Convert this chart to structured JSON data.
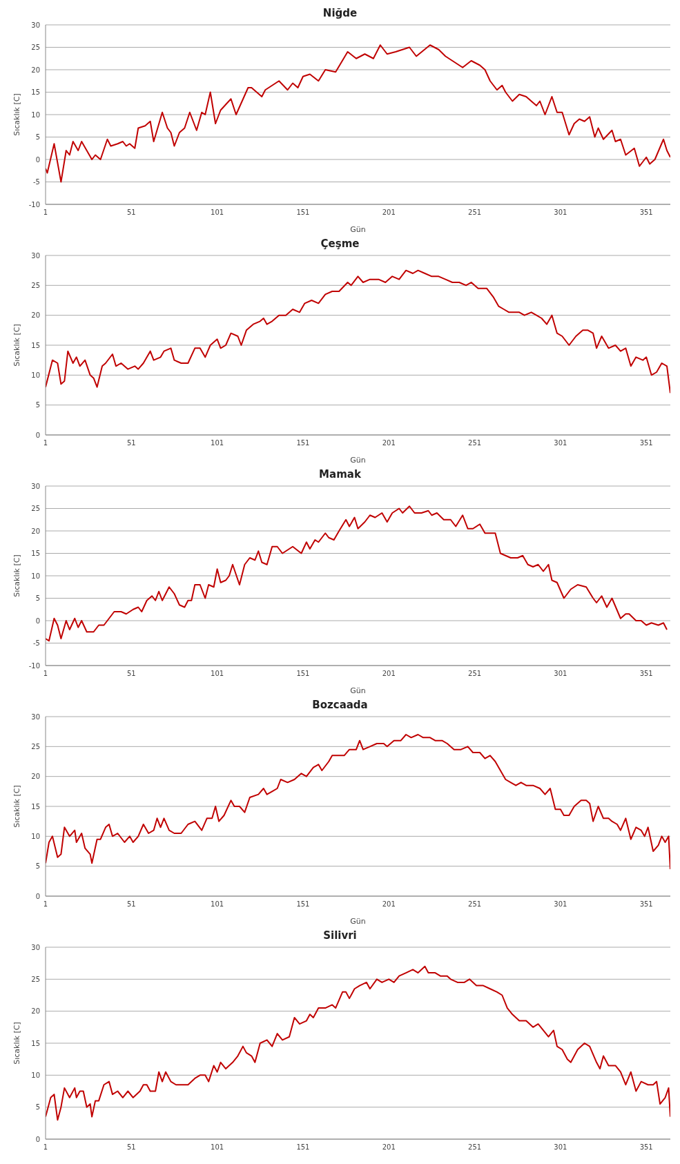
{
  "chart_data": [
    {
      "type": "line",
      "title": "Niğde",
      "xlabel": "Gün",
      "ylabel": "Sıcaklık [C]",
      "xlim": [
        1,
        365
      ],
      "xticks": [
        1,
        51,
        101,
        151,
        201,
        251,
        301,
        351
      ],
      "ylim": [
        -10,
        30
      ],
      "yticks": [
        -10,
        -5,
        0,
        5,
        10,
        15,
        20,
        25,
        30
      ],
      "grid": "y",
      "marker": "none",
      "line_style": "solid",
      "color": "#c00000",
      "x": [
        1,
        2,
        6,
        10,
        13,
        15,
        17,
        20,
        22,
        25,
        28,
        30,
        33,
        37,
        39,
        43,
        46,
        48,
        50,
        53,
        55,
        59,
        62,
        64,
        69,
        72,
        74,
        76,
        79,
        82,
        85,
        89,
        92,
        94,
        97,
        100,
        103,
        109,
        112,
        119,
        121,
        127,
        129,
        137,
        142,
        145,
        148,
        151,
        155,
        160,
        164,
        170,
        177,
        182,
        187,
        192,
        196,
        200,
        205,
        213,
        217,
        225,
        230,
        234,
        238,
        244,
        249,
        254,
        257,
        260,
        264,
        267,
        269,
        273,
        277,
        281,
        287,
        289,
        292,
        296,
        299,
        302,
        306,
        309,
        312,
        315,
        318,
        321,
        323,
        326,
        331,
        333,
        336,
        339,
        344,
        347,
        351,
        353,
        356,
        361,
        363,
        365
      ],
      "values": [
        -2,
        -3,
        3.5,
        -5,
        2,
        1,
        4,
        2,
        4,
        2,
        0,
        1,
        0,
        4.5,
        3,
        3.5,
        4,
        3,
        3.5,
        2.5,
        7,
        7.5,
        8.5,
        4,
        10.5,
        7,
        6,
        3,
        6,
        7,
        10.5,
        6.5,
        10.5,
        10,
        15,
        8,
        11,
        13.5,
        10,
        16,
        16,
        14,
        15.5,
        17.5,
        15.5,
        17,
        16,
        18.5,
        19,
        17.5,
        20,
        19.5,
        24,
        22.5,
        23.5,
        22.5,
        25.5,
        23.5,
        24,
        25,
        23,
        25.5,
        24.5,
        23,
        22,
        20.5,
        22,
        21,
        20,
        17.5,
        15.5,
        16.5,
        15,
        13,
        14.5,
        14,
        12,
        13,
        10,
        14,
        10.5,
        10.5,
        5.5,
        8,
        9,
        8.5,
        9.5,
        5,
        7,
        4.5,
        6.5,
        4,
        4.5,
        1,
        2.5,
        -1.5,
        0.5,
        -1,
        0,
        4.5,
        2,
        0.5
      ]
    },
    {
      "type": "line",
      "title": "Çeşme",
      "xlabel": "Gün",
      "ylabel": "Sıcaklık [C]",
      "xlim": [
        1,
        365
      ],
      "xticks": [
        1,
        51,
        101,
        151,
        201,
        251,
        301,
        351
      ],
      "ylim": [
        0,
        30
      ],
      "yticks": [
        0,
        5,
        10,
        15,
        20,
        25,
        30
      ],
      "grid": "y",
      "marker": "none",
      "line_style": "solid",
      "color": "#c00000",
      "x": [
        1,
        5,
        8,
        10,
        12,
        14,
        17,
        19,
        21,
        24,
        27,
        29,
        31,
        34,
        36,
        40,
        42,
        45,
        49,
        53,
        55,
        58,
        62,
        64,
        68,
        70,
        74,
        76,
        80,
        84,
        88,
        91,
        94,
        97,
        101,
        103,
        106,
        109,
        113,
        115,
        118,
        122,
        126,
        128,
        130,
        133,
        137,
        141,
        145,
        149,
        152,
        156,
        160,
        164,
        168,
        172,
        177,
        179,
        183,
        186,
        190,
        195,
        199,
        203,
        207,
        211,
        215,
        218,
        222,
        226,
        230,
        234,
        238,
        242,
        246,
        249,
        253,
        258,
        262,
        265,
        268,
        271,
        274,
        277,
        280,
        284,
        287,
        290,
        293,
        296,
        299,
        302,
        306,
        310,
        314,
        317,
        320,
        322,
        325,
        329,
        333,
        336,
        339,
        342,
        345,
        349,
        351,
        354,
        357,
        360,
        363,
        365
      ],
      "values": [
        8,
        12.5,
        12,
        8.5,
        9,
        14,
        12,
        13,
        11.5,
        12.5,
        10,
        9.5,
        8,
        11.5,
        12,
        13.5,
        11.5,
        12,
        11,
        11.5,
        11,
        12,
        14,
        12.5,
        13,
        14,
        14.5,
        12.5,
        12,
        12,
        14.5,
        14.5,
        13,
        15,
        16,
        14.5,
        15,
        17,
        16.5,
        15,
        17.5,
        18.5,
        19,
        19.5,
        18.5,
        19,
        20,
        20,
        21,
        20.5,
        22,
        22.5,
        22,
        23.5,
        24,
        24,
        25.5,
        25,
        26.5,
        25.5,
        26,
        26,
        25.5,
        26.5,
        26,
        27.5,
        27,
        27.5,
        27,
        26.5,
        26.5,
        26,
        25.5,
        25.5,
        25,
        25.5,
        24.5,
        24.5,
        23,
        21.5,
        21,
        20.5,
        20.5,
        20.5,
        20,
        20.5,
        20,
        19.5,
        18.5,
        20,
        17,
        16.5,
        15,
        16.5,
        17.5,
        17.5,
        17,
        14.5,
        16.5,
        14.5,
        15,
        14,
        14.5,
        11.5,
        13,
        12.5,
        13,
        10,
        10.5,
        12,
        11.5,
        7
      ]
    },
    {
      "type": "line",
      "title": "Mamak",
      "xlabel": "Gün",
      "ylabel": "Sıcaklık [C]",
      "xlim": [
        1,
        365
      ],
      "xticks": [
        1,
        51,
        101,
        151,
        201,
        251,
        301,
        351
      ],
      "ylim": [
        -10,
        30
      ],
      "yticks": [
        -10,
        -5,
        0,
        5,
        10,
        15,
        20,
        25,
        30
      ],
      "grid": "y",
      "marker": "none",
      "line_style": "solid",
      "color": "#c00000",
      "x": [
        1,
        3,
        6,
        8,
        10,
        13,
        15,
        18,
        20,
        22,
        25,
        29,
        32,
        35,
        38,
        41,
        45,
        48,
        52,
        55,
        57,
        60,
        63,
        65,
        67,
        69,
        73,
        76,
        79,
        82,
        84,
        86,
        88,
        91,
        94,
        96,
        99,
        101,
        103,
        106,
        108,
        110,
        114,
        117,
        120,
        123,
        125,
        127,
        130,
        133,
        136,
        139,
        143,
        145,
        150,
        153,
        155,
        158,
        160,
        164,
        166,
        169,
        172,
        176,
        178,
        181,
        183,
        187,
        190,
        193,
        197,
        200,
        203,
        207,
        209,
        213,
        216,
        220,
        224,
        226,
        229,
        233,
        237,
        240,
        244,
        247,
        250,
        254,
        257,
        260,
        263,
        266,
        269,
        272,
        276,
        279,
        282,
        285,
        288,
        291,
        294,
        296,
        299,
        303,
        307,
        311,
        316,
        320,
        322,
        325,
        328,
        331,
        336,
        339,
        341,
        345,
        348,
        351,
        354,
        358,
        361,
        363
      ],
      "values": [
        -4,
        -4.5,
        0.5,
        -1,
        -4,
        0,
        -2,
        0.5,
        -1.5,
        0,
        -2.5,
        -2.5,
        -1,
        -1,
        0.5,
        2,
        2,
        1.5,
        2.5,
        3,
        2,
        4.5,
        5.5,
        4.5,
        6.5,
        4.5,
        7.5,
        6,
        3.5,
        3,
        4.5,
        4.5,
        8,
        8,
        5,
        8,
        7.5,
        11.5,
        8.5,
        9,
        10,
        12.5,
        8,
        12.5,
        14,
        13.5,
        15.5,
        13,
        12.5,
        16.5,
        16.5,
        15,
        16,
        16.5,
        15,
        17.5,
        16,
        18,
        17.5,
        19.5,
        18.5,
        18,
        20,
        22.5,
        21,
        23,
        20.5,
        22,
        23.5,
        23,
        24,
        22,
        24,
        25,
        24,
        25.5,
        24,
        24,
        24.5,
        23.5,
        24,
        22.5,
        22.5,
        21,
        23.5,
        20.5,
        20.5,
        21.5,
        19.5,
        19.5,
        19.5,
        15,
        14.5,
        14,
        14,
        14.5,
        12.5,
        12,
        12.5,
        11,
        12.5,
        9,
        8.5,
        5,
        7,
        8,
        7.5,
        5,
        4,
        5.5,
        3,
        5,
        0.5,
        1.5,
        1.5,
        0,
        0,
        -1,
        -0.5,
        -1,
        -0.5,
        -2
      ]
    },
    {
      "type": "line",
      "title": "Bozcaada",
      "xlabel": "Gün",
      "ylabel": "Sıcaklık [C]",
      "xlim": [
        1,
        365
      ],
      "xticks": [
        1,
        51,
        101,
        151,
        201,
        251,
        301,
        351
      ],
      "ylim": [
        0,
        30
      ],
      "yticks": [
        0,
        5,
        10,
        15,
        20,
        25,
        30
      ],
      "grid": "y",
      "marker": "none",
      "line_style": "solid",
      "color": "#c00000",
      "x": [
        1,
        3,
        5,
        8,
        10,
        12,
        15,
        18,
        19,
        22,
        24,
        27,
        28,
        31,
        33,
        36,
        38,
        40,
        43,
        47,
        50,
        52,
        55,
        58,
        61,
        64,
        66,
        68,
        70,
        73,
        76,
        80,
        84,
        88,
        92,
        95,
        98,
        100,
        102,
        105,
        109,
        111,
        114,
        117,
        120,
        125,
        128,
        130,
        133,
        136,
        138,
        142,
        146,
        150,
        153,
        157,
        160,
        162,
        166,
        168,
        172,
        175,
        178,
        182,
        184,
        186,
        190,
        194,
        198,
        200,
        204,
        208,
        211,
        214,
        218,
        221,
        225,
        228,
        232,
        235,
        239,
        243,
        247,
        250,
        254,
        257,
        260,
        263,
        266,
        269,
        272,
        275,
        278,
        281,
        285,
        289,
        292,
        295,
        298,
        301,
        303,
        306,
        309,
        313,
        316,
        318,
        320,
        323,
        326,
        329,
        331,
        334,
        336,
        339,
        342,
        345,
        348,
        350,
        352,
        355,
        358,
        360,
        362,
        364,
        365
      ],
      "values": [
        5.5,
        9,
        10,
        6.5,
        7,
        11.5,
        10,
        11,
        9,
        10.5,
        8,
        7,
        5.5,
        9.5,
        9.5,
        11.5,
        12,
        10,
        10.5,
        9,
        10,
        9,
        10,
        12,
        10.5,
        11,
        13,
        11.5,
        13,
        11,
        10.5,
        10.5,
        12,
        12.5,
        11,
        13,
        13,
        15,
        12.5,
        13.5,
        16,
        15,
        15,
        14,
        16.5,
        17,
        18,
        17,
        17.5,
        18,
        19.5,
        19,
        19.5,
        20.5,
        20,
        21.5,
        22,
        21,
        22.5,
        23.5,
        23.5,
        23.5,
        24.5,
        24.5,
        26,
        24.5,
        25,
        25.5,
        25.5,
        25,
        26,
        26,
        27,
        26.5,
        27,
        26.5,
        26.5,
        26,
        26,
        25.5,
        24.5,
        24.5,
        25,
        24,
        24,
        23,
        23.5,
        22.5,
        21,
        19.5,
        19,
        18.5,
        19,
        18.5,
        18.5,
        18,
        17,
        18,
        14.5,
        14.5,
        13.5,
        13.5,
        15,
        16,
        16,
        15.5,
        12.5,
        15,
        13,
        13,
        12.5,
        12,
        11,
        13,
        9.5,
        11.5,
        11,
        10,
        11.5,
        7.5,
        8.5,
        10,
        9,
        10,
        4.5
      ]
    },
    {
      "type": "line",
      "title": "Silivri",
      "ylabel": "Sıcaklık [C]",
      "xlim": [
        1,
        365
      ],
      "xticks": [
        1,
        51,
        101,
        151,
        201,
        251,
        301,
        351
      ],
      "ylim": [
        0,
        30
      ],
      "yticks": [
        0,
        5,
        10,
        15,
        20,
        25,
        30
      ],
      "grid": "y",
      "marker": "none",
      "line_style": "solid",
      "color": "#c00000",
      "x": [
        1,
        4,
        6,
        8,
        10,
        12,
        15,
        18,
        19,
        21,
        23,
        25,
        27,
        28,
        30,
        32,
        35,
        38,
        40,
        43,
        46,
        49,
        52,
        56,
        58,
        60,
        62,
        65,
        67,
        69,
        71,
        74,
        77,
        80,
        84,
        88,
        91,
        94,
        96,
        99,
        101,
        103,
        106,
        110,
        113,
        116,
        118,
        121,
        123,
        126,
        130,
        133,
        136,
        139,
        143,
        146,
        149,
        153,
        155,
        157,
        160,
        164,
        168,
        170,
        174,
        176,
        178,
        181,
        184,
        188,
        190,
        194,
        197,
        201,
        204,
        207,
        211,
        215,
        218,
        222,
        224,
        228,
        231,
        235,
        237,
        241,
        245,
        248,
        252,
        256,
        260,
        264,
        267,
        270,
        273,
        277,
        281,
        285,
        288,
        291,
        294,
        297,
        299,
        302,
        305,
        307,
        311,
        315,
        318,
        322,
        324,
        326,
        329,
        333,
        336,
        339,
        342,
        345,
        348,
        352,
        355,
        357,
        359,
        362,
        364,
        365
      ],
      "values": [
        3.5,
        6.5,
        7,
        3,
        5,
        8,
        6.5,
        8,
        6.5,
        7.5,
        7.5,
        5,
        5.5,
        3.5,
        6,
        6,
        8.5,
        9,
        7,
        7.5,
        6.5,
        7.5,
        6.5,
        7.5,
        8.5,
        8.5,
        7.5,
        7.5,
        10.5,
        9,
        10.5,
        9,
        8.5,
        8.5,
        8.5,
        9.5,
        10,
        10,
        9,
        11.5,
        10.5,
        12,
        11,
        12,
        13,
        14.5,
        13.5,
        13,
        12,
        15,
        15.5,
        14.5,
        16.5,
        15.5,
        16,
        19,
        18,
        18.5,
        19.5,
        19,
        20.5,
        20.5,
        21,
        20.5,
        23,
        23,
        22,
        23.5,
        24,
        24.5,
        23.5,
        25,
        24.5,
        25,
        24.5,
        25.5,
        26,
        26.5,
        26,
        27,
        26,
        26,
        25.5,
        25.5,
        25,
        24.5,
        24.5,
        25,
        24,
        24,
        23.5,
        23,
        22.5,
        20.5,
        19.5,
        18.5,
        18.5,
        17.5,
        18,
        17,
        16,
        17,
        14.5,
        14,
        12.5,
        12,
        14,
        15,
        14.5,
        12,
        11,
        13,
        11.5,
        11.5,
        10.5,
        8.5,
        10.5,
        7.5,
        9,
        8.5,
        8.5,
        9,
        5.5,
        6.5,
        8,
        3.5
      ]
    }
  ]
}
